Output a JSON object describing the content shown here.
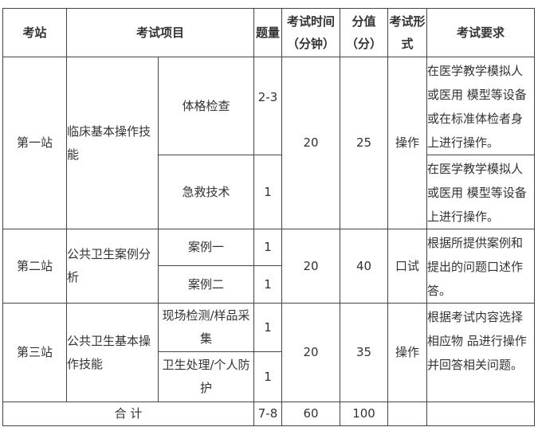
{
  "headers": {
    "station": "考站",
    "project": "考试项目",
    "count": "题量",
    "time": "考试时间（分钟）",
    "score": "分值（分）",
    "form": "考试形式",
    "requirement": "考试要求"
  },
  "stations": [
    {
      "name": "第一站",
      "project": "临床基本操作技能",
      "time": "20",
      "score": "25",
      "form": "操作",
      "subs": [
        {
          "name": "体格检查",
          "count": "2-3",
          "requirement": "在医学教学模拟人或医用 模型等设备或在标准体检者身上进行操作。"
        },
        {
          "name": "急救技术",
          "count": "1",
          "requirement": "在医学教学模拟人或医用 模型等设备上进行操作。"
        }
      ]
    },
    {
      "name": "第二站",
      "project": "公共卫生案例分析",
      "time": "20",
      "score": "40",
      "form": "口试",
      "requirement": "根据所提供案例和提出的问题口述作答。",
      "subs": [
        {
          "name": "案例一",
          "count": "1"
        },
        {
          "name": "案例二",
          "count": "1"
        }
      ]
    },
    {
      "name": "第三站",
      "project": "公共卫生基本操作技能",
      "time": "20",
      "score": "35",
      "form": "操作",
      "requirement": "根据考试内容选择相应物 品进行操作并回答相关问题。",
      "subs": [
        {
          "name": "现场检测/样品采集",
          "count": "1"
        },
        {
          "name": "卫生处理/个人防护",
          "count": "1"
        }
      ]
    }
  ],
  "total": {
    "label": "合 计",
    "count": "7-8",
    "time": "60",
    "score": "100"
  }
}
